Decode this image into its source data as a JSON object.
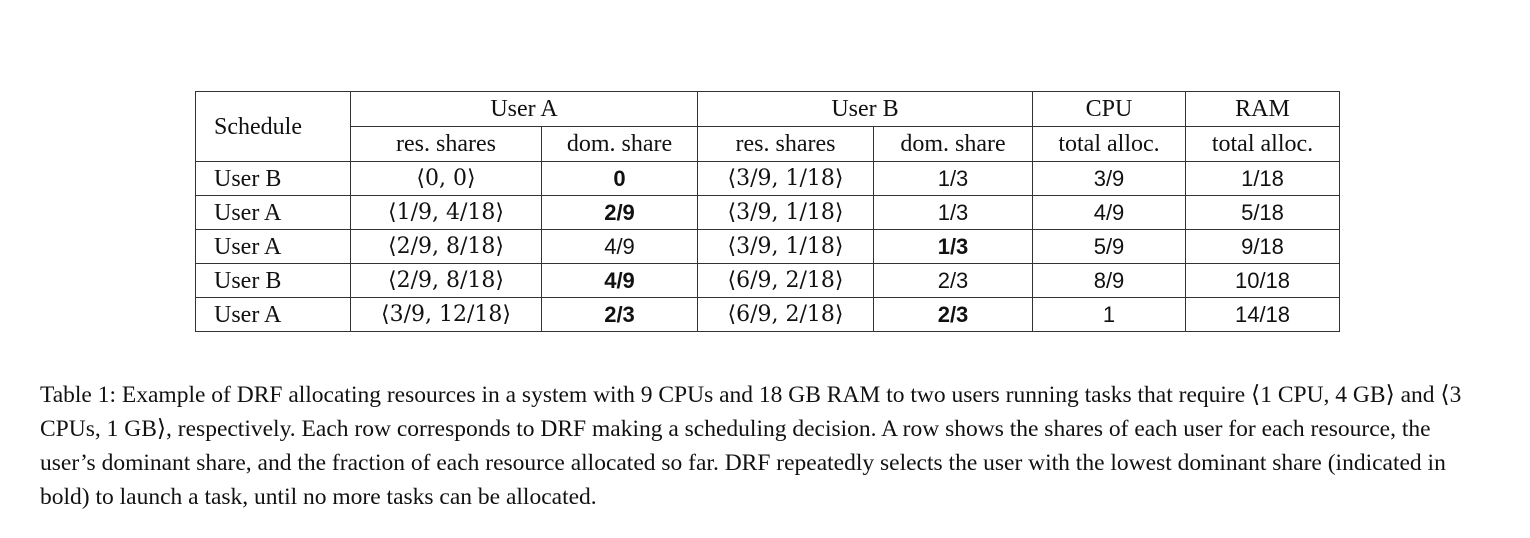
{
  "table": {
    "header_row1": {
      "schedule": "Schedule",
      "user_a": "User A",
      "user_b": "User B",
      "cpu": "CPU",
      "ram": "RAM"
    },
    "header_row2": {
      "a_res": "res. shares",
      "a_dom": "dom. share",
      "b_res": "res. shares",
      "b_dom": "dom. share",
      "cpu_total": "total alloc.",
      "ram_total": "total alloc."
    },
    "rows": [
      {
        "schedule": "User B",
        "a_res": "⟨0, 0⟩",
        "a_dom": "0",
        "a_dom_bold": true,
        "b_res": "⟨3/9, 1/18⟩",
        "b_dom": "1/3",
        "b_dom_bold": false,
        "cpu": "3/9",
        "ram": "1/18"
      },
      {
        "schedule": "User A",
        "a_res": "⟨1/9, 4/18⟩",
        "a_dom": "2/9",
        "a_dom_bold": true,
        "b_res": "⟨3/9, 1/18⟩",
        "b_dom": "1/3",
        "b_dom_bold": false,
        "cpu": "4/9",
        "ram": "5/18"
      },
      {
        "schedule": "User A",
        "a_res": "⟨2/9, 8/18⟩",
        "a_dom": "4/9",
        "a_dom_bold": false,
        "b_res": "⟨3/9, 1/18⟩",
        "b_dom": "1/3",
        "b_dom_bold": true,
        "cpu": "5/9",
        "ram": "9/18"
      },
      {
        "schedule": "User B",
        "a_res": "⟨2/9, 8/18⟩",
        "a_dom": "4/9",
        "a_dom_bold": true,
        "b_res": "⟨6/9, 2/18⟩",
        "b_dom": "2/3",
        "b_dom_bold": false,
        "cpu": "8/9",
        "ram": "10/18"
      },
      {
        "schedule": "User A",
        "a_res": "⟨3/9, 12/18⟩",
        "a_dom": "2/3",
        "a_dom_bold": true,
        "b_res": "⟨6/9, 2/18⟩",
        "b_dom": "2/3",
        "b_dom_bold": true,
        "cpu": "1",
        "ram": "14/18"
      }
    ]
  },
  "caption": "Table 1: Example of DRF allocating resources in a system with 9 CPUs and 18 GB RAM to two users running tasks that require ⟨1 CPU, 4 GB⟩ and ⟨3 CPUs, 1 GB⟩, respectively. Each row corresponds to DRF making a scheduling decision. A row shows the shares of each user for each resource, the user’s dominant share, and the fraction of each resource allocated so far. DRF repeatedly selects the user with the lowest dominant share (indicated in bold) to launch a task, until no more tasks can be allocated."
}
